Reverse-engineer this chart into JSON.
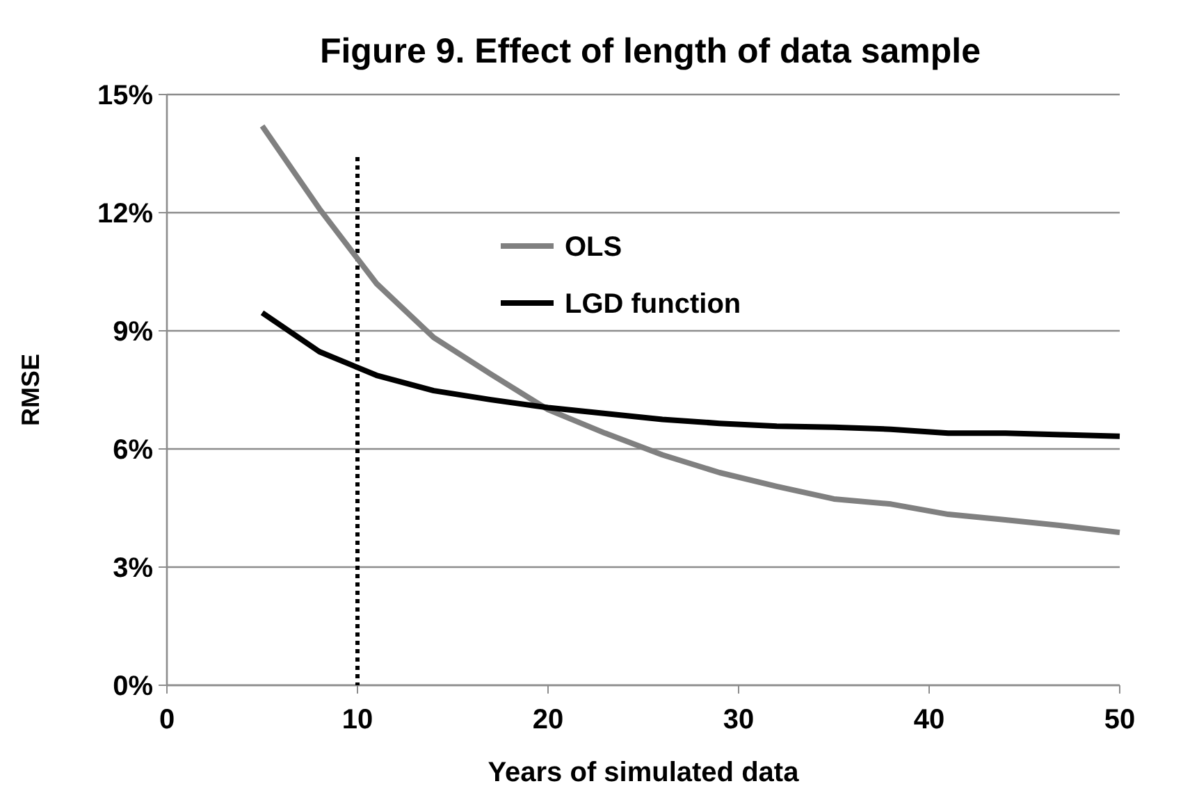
{
  "chart_data": {
    "type": "line",
    "title": "Figure 9. Effect of length of data sample",
    "xlabel": "Years of simulated data",
    "ylabel": "RMSE",
    "x": [
      5,
      8,
      11,
      14,
      17,
      20,
      23,
      26,
      29,
      32,
      35,
      38,
      41,
      44,
      47,
      50
    ],
    "series": [
      {
        "name": "OLS",
        "color": "#808080",
        "values": [
          14.2,
          12.1,
          10.2,
          8.83,
          7.9,
          7.0,
          6.4,
          5.85,
          5.4,
          5.05,
          4.73,
          4.6,
          4.34,
          4.2,
          4.05,
          3.88
        ]
      },
      {
        "name": "LGD function",
        "color": "#000000",
        "values": [
          9.46,
          8.47,
          7.87,
          7.48,
          7.25,
          7.05,
          6.9,
          6.75,
          6.65,
          6.58,
          6.55,
          6.5,
          6.4,
          6.4,
          6.36,
          6.32
        ]
      }
    ],
    "xlim": [
      0,
      50
    ],
    "xticks": [
      0,
      10,
      20,
      30,
      40,
      50
    ],
    "ylim": [
      0,
      15
    ],
    "yticks": [
      {
        "value": 0,
        "label": "0%"
      },
      {
        "value": 3,
        "label": "3%"
      },
      {
        "value": 6,
        "label": "6%"
      },
      {
        "value": 9,
        "label": "9%"
      },
      {
        "value": 12,
        "label": "12%"
      },
      {
        "value": 15,
        "label": "15%"
      }
    ],
    "grid": "y",
    "legend": "top",
    "marker": "none",
    "line_style": "solid",
    "ref_lines": [
      {
        "axis": "x",
        "value": 10,
        "label": null,
        "color": "#000000",
        "line_style": "dotted"
      }
    ]
  }
}
